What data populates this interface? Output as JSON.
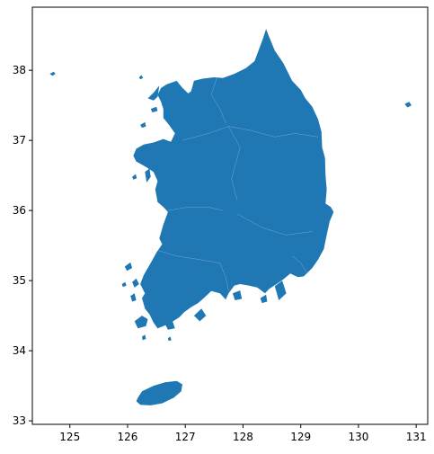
{
  "chart_data": {
    "type": "map",
    "title": "",
    "xlabel": "",
    "ylabel": "",
    "xlim": [
      124.35,
      131.2
    ],
    "ylim": [
      32.95,
      38.9
    ],
    "x_ticks": [
      125,
      126,
      127,
      128,
      129,
      130,
      131
    ],
    "y_ticks": [
      33,
      34,
      35,
      36,
      37,
      38
    ],
    "fill_color": "#1f77b4",
    "grid": false,
    "legend": "none"
  }
}
